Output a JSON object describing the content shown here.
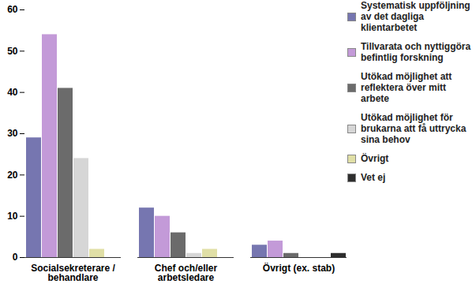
{
  "chart_data": {
    "type": "bar",
    "categories": [
      "Socialsekreterare / behandlare",
      "Chef och/eller arbetsledare",
      "Övrigt (ex. stab)"
    ],
    "series": [
      {
        "name": "Systematisk uppföljning av det dagliga klientarbetet",
        "color": "#7676b0",
        "values": [
          29,
          12,
          3
        ]
      },
      {
        "name": "Tillvarata och nyttiggöra befintlig forskning",
        "color": "#c39ad8",
        "values": [
          54,
          10,
          4
        ]
      },
      {
        "name": "Utökad möjlighet att reflektera över mitt arbete",
        "color": "#6b6b6b",
        "values": [
          41,
          6,
          1
        ]
      },
      {
        "name": "Utökad möjlighet för brukarna att få uttrycka sina behov",
        "color": "#d6d6d6",
        "values": [
          24,
          1,
          0
        ]
      },
      {
        "name": "Övrigt",
        "color": "#e0dfa6",
        "values": [
          2,
          2,
          0
        ]
      },
      {
        "name": "Vet ej",
        "color": "#2e2e2e",
        "values": [
          0,
          0,
          1
        ]
      }
    ],
    "ylim": [
      0,
      60
    ],
    "yticks": [
      0,
      10,
      20,
      30,
      40,
      50,
      60
    ],
    "grid": false,
    "legend": "right"
  }
}
